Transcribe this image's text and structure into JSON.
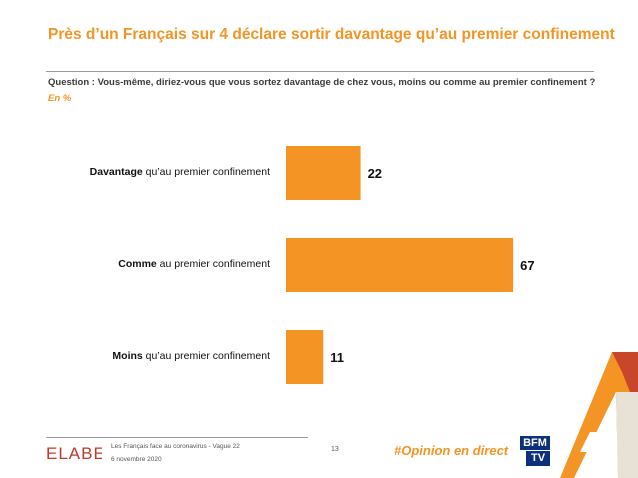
{
  "header": {
    "title": "Près d’un Français sur 4 déclare sortir davantage qu’au premier confinement",
    "question": "Question : Vous-même, diriez-vous que vous sortez davantage de chez vous, moins ou comme au premier confinement ?",
    "unit": "En %"
  },
  "chart_data": {
    "type": "bar",
    "orientation": "horizontal",
    "categories": [
      {
        "bold": "Davantage",
        "rest": " qu’au premier confinement"
      },
      {
        "bold": "Comme",
        "rest": " au premier confinement"
      },
      {
        "bold": "Moins",
        "rest": " qu’au premier confinement"
      }
    ],
    "values": [
      22,
      67,
      11
    ],
    "value_labels": [
      "22",
      "67",
      "11"
    ],
    "xlim": [
      0,
      100
    ],
    "bar_color": "#f39425",
    "grid": false,
    "legend": "none"
  },
  "footer": {
    "logo_text": "ELABE",
    "study": "Les Français face au coronavirus - Vague 22",
    "date": "6 novembre 2020",
    "page": "13",
    "hashtag": "#Opinion en direct",
    "partner_line1": "BFM",
    "partner_line2": "TV"
  },
  "colors": {
    "accent": "#f39425",
    "text": "#3b3b3b",
    "partner": "#0e2f7a"
  }
}
